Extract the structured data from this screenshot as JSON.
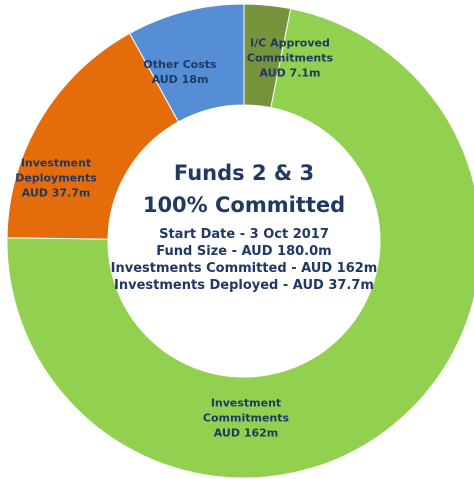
{
  "chart_data": {
    "type": "donut",
    "title": "Funds 2 & 3",
    "subtitle": "100% Committed",
    "annotations": [
      "Start Date - 3 Oct 2017",
      "Fund Size - AUD 180.0m",
      "Investments Committed - AUD 162m",
      "Investments Deployed - AUD 37.7m"
    ],
    "categories": [
      "I/C Approved Commitments",
      "Investment Commitments",
      "Investment Deployments",
      "Other Costs"
    ],
    "values": [
      7.1,
      162,
      37.7,
      18
    ],
    "value_labels": [
      "AUD 7.1m",
      "AUD 162m",
      "AUD 37.7m",
      "AUD 18m"
    ],
    "colors": [
      "#77933c",
      "#92d050",
      "#e46c0a",
      "#558ed5"
    ]
  }
}
